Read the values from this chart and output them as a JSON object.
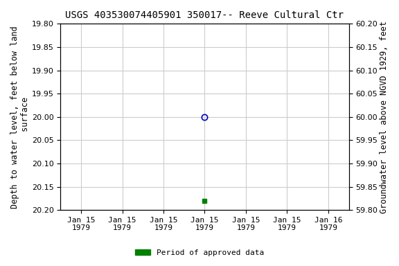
{
  "title": "USGS 403530074405901 350017-- Reeve Cultural Ctr",
  "ylabel_left": "Depth to water level, feet below land\n surface",
  "ylabel_right": "Groundwater level above NGVD 1929, feet",
  "ylim_left": [
    20.2,
    19.8
  ],
  "ylim_right": [
    59.8,
    60.2
  ],
  "yticks_left": [
    19.8,
    19.85,
    19.9,
    19.95,
    20.0,
    20.05,
    20.1,
    20.15,
    20.2
  ],
  "yticks_right": [
    60.2,
    60.15,
    60.1,
    60.05,
    60.0,
    59.95,
    59.9,
    59.85,
    59.8
  ],
  "data_open_x": 3,
  "data_open_y": 20.0,
  "data_open_color": "#0000bb",
  "data_approved_x": 3,
  "data_approved_y": 20.18,
  "data_approved_color": "#008000",
  "xlim": [
    -0.5,
    6.5
  ],
  "xtick_positions": [
    0,
    1,
    2,
    3,
    4,
    5,
    6
  ],
  "xtick_labels": [
    "Jan 15\n1979",
    "Jan 15\n1979",
    "Jan 15\n1979",
    "Jan 15\n1979",
    "Jan 15\n1979",
    "Jan 15\n1979",
    "Jan 16\n1979"
  ],
  "legend_label": "Period of approved data",
  "legend_color": "#008000",
  "background_color": "#ffffff",
  "grid_color": "#cccccc",
  "title_fontsize": 10,
  "tick_fontsize": 8,
  "label_fontsize": 8.5
}
